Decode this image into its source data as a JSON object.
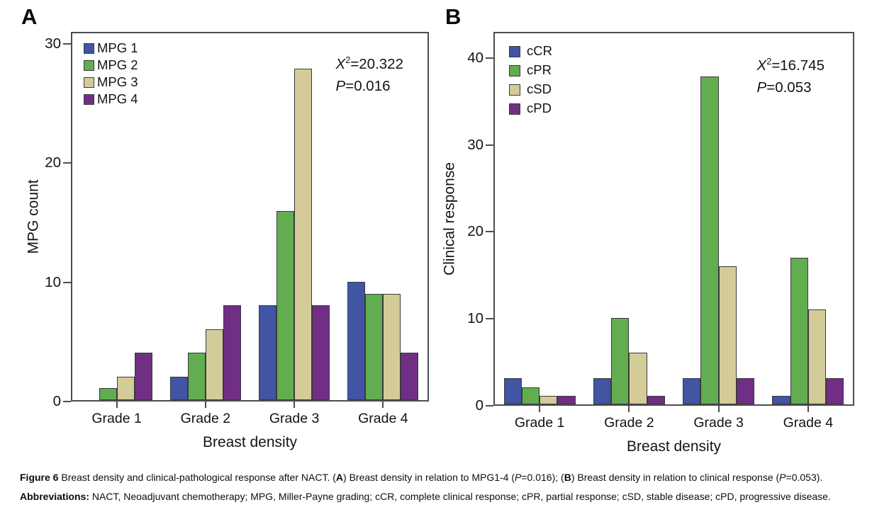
{
  "figure": {
    "caption_line1": [
      {
        "t": "Figure 6 ",
        "b": true
      },
      {
        "t": "Breast density and clinical-pathological response after NACT. (",
        "b": false
      },
      {
        "t": "A",
        "b": true
      },
      {
        "t": ") Breast density in relation to MPG1-4 (",
        "b": false
      },
      {
        "t": "P",
        "i": true
      },
      {
        "t": "=0.016); (",
        "b": false
      },
      {
        "t": "B",
        "b": true
      },
      {
        "t": ") Breast density in relation to clinical response (",
        "b": false
      },
      {
        "t": "P",
        "i": true
      },
      {
        "t": "=0.053).",
        "b": false
      }
    ],
    "caption_line2": [
      {
        "t": "Abbreviations: ",
        "b": true
      },
      {
        "t": "NACT, Neoadjuvant chemotherapy; MPG, Miller-Payne grading; cCR, complete clinical response; cPR, partial response; cSD, stable disease; cPD, progressive disease.",
        "b": false
      }
    ]
  },
  "chart_data": [
    {
      "type": "bar",
      "panel_label": "A",
      "title": "",
      "xlabel": "Breast density",
      "ylabel": "MPG count",
      "categories": [
        "Grade 1",
        "Grade 2",
        "Grade 3",
        "Grade 4"
      ],
      "series": [
        {
          "name": "MPG 1",
          "color": "#4255A4",
          "values": [
            0,
            2,
            8,
            10
          ]
        },
        {
          "name": "MPG 2",
          "color": "#61AD4F",
          "values": [
            1,
            4,
            16,
            9
          ]
        },
        {
          "name": "MPG 3",
          "color": "#D3CC98",
          "values": [
            2,
            6,
            28,
            9
          ]
        },
        {
          "name": "MPG 4",
          "color": "#702E84",
          "values": [
            4,
            8,
            8,
            4
          ]
        }
      ],
      "yticks": [
        0,
        10,
        20,
        30
      ],
      "ylim": [
        0,
        31
      ],
      "grid": false,
      "legend_position": "top-left",
      "annotation": {
        "chi_label": "X",
        "chi_sup": "2",
        "chi_value": "=20.322",
        "p_label": "P",
        "p_value": "=0.016"
      }
    },
    {
      "type": "bar",
      "panel_label": "B",
      "title": "",
      "xlabel": "Breast density",
      "ylabel": "Clinical response",
      "categories": [
        "Grade 1",
        "Grade 2",
        "Grade 3",
        "Grade 4"
      ],
      "series": [
        {
          "name": "cCR",
          "color": "#4255A4",
          "values": [
            3,
            3,
            3,
            1
          ]
        },
        {
          "name": "cPR",
          "color": "#61AD4F",
          "values": [
            2,
            10,
            38,
            17
          ]
        },
        {
          "name": "cSD",
          "color": "#D3CC98",
          "values": [
            1,
            6,
            16,
            11
          ]
        },
        {
          "name": "cPD",
          "color": "#702E84",
          "values": [
            1,
            1,
            3,
            3
          ]
        }
      ],
      "yticks": [
        0,
        10,
        20,
        30,
        40
      ],
      "ylim": [
        0,
        43
      ],
      "grid": false,
      "legend_position": "top-left",
      "annotation": {
        "chi_label": "X",
        "chi_sup": "2",
        "chi_value": "=16.745",
        "p_label": "P",
        "p_value": "=0.053"
      }
    }
  ]
}
